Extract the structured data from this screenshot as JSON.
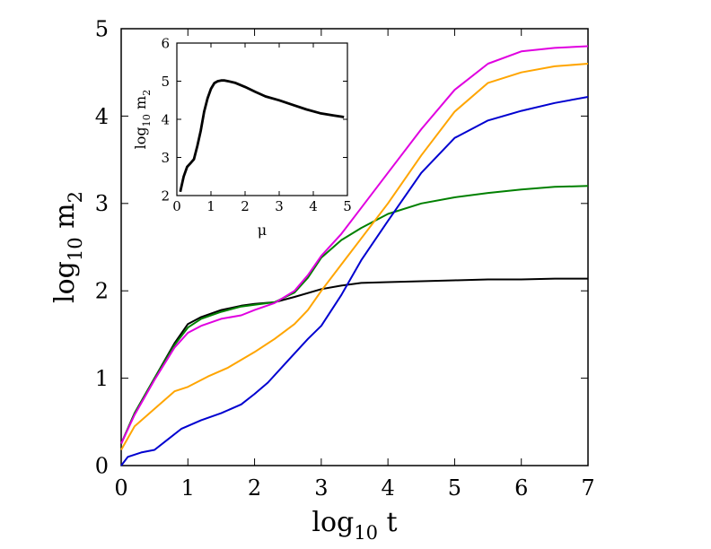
{
  "chart_data": [
    {
      "type": "line",
      "title": "",
      "xlabel": "log",
      "xlabel_sub": "10",
      "xlabel_tail": " t",
      "ylabel": "log",
      "ylabel_sub": "10",
      "ylabel_tail": " m",
      "ylabel_sub2": "2",
      "xlim": [
        0,
        7
      ],
      "ylim": [
        0,
        5
      ],
      "xticks": [
        "0",
        "1",
        "2",
        "3",
        "4",
        "5",
        "6",
        "7"
      ],
      "yticks": [
        "0",
        "1",
        "2",
        "3",
        "4",
        "5"
      ],
      "grid": false,
      "series": [
        {
          "name": "black",
          "color": "#000000",
          "x": [
            0,
            0.2,
            0.5,
            0.8,
            1.0,
            1.2,
            1.5,
            1.8,
            2.0,
            2.3,
            2.6,
            3.0,
            3.3,
            3.6,
            4.0,
            4.5,
            5.0,
            5.5,
            6.0,
            6.5,
            7.0
          ],
          "y": [
            0.25,
            0.6,
            1.0,
            1.4,
            1.62,
            1.7,
            1.78,
            1.83,
            1.85,
            1.87,
            1.93,
            2.02,
            2.06,
            2.09,
            2.1,
            2.11,
            2.12,
            2.13,
            2.13,
            2.14,
            2.14
          ]
        },
        {
          "name": "green",
          "color": "#008000",
          "x": [
            0,
            0.2,
            0.5,
            0.8,
            1.0,
            1.2,
            1.5,
            1.8,
            2.0,
            2.3,
            2.6,
            2.8,
            3.0,
            3.3,
            3.6,
            4.0,
            4.5,
            5.0,
            5.5,
            6.0,
            6.5,
            7.0
          ],
          "y": [
            0.25,
            0.6,
            1.0,
            1.38,
            1.58,
            1.68,
            1.76,
            1.82,
            1.84,
            1.87,
            1.98,
            2.15,
            2.38,
            2.58,
            2.72,
            2.88,
            3.0,
            3.07,
            3.12,
            3.16,
            3.19,
            3.2
          ]
        },
        {
          "name": "magenta",
          "color": "#e000e0",
          "x": [
            0,
            0.2,
            0.5,
            0.8,
            1.0,
            1.2,
            1.5,
            1.8,
            2.0,
            2.3,
            2.6,
            2.8,
            3.0,
            3.3,
            3.6,
            4.0,
            4.5,
            5.0,
            5.5,
            6.0,
            6.5,
            7.0
          ],
          "y": [
            0.25,
            0.58,
            0.98,
            1.35,
            1.52,
            1.6,
            1.68,
            1.72,
            1.78,
            1.86,
            2.0,
            2.18,
            2.4,
            2.65,
            2.95,
            3.35,
            3.85,
            4.3,
            4.6,
            4.74,
            4.78,
            4.8
          ]
        },
        {
          "name": "orange",
          "color": "#ffa500",
          "x": [
            0,
            0.2,
            0.5,
            0.8,
            1.0,
            1.3,
            1.6,
            2.0,
            2.3,
            2.6,
            2.8,
            3.0,
            3.3,
            3.6,
            4.0,
            4.5,
            5.0,
            5.5,
            6.0,
            6.5,
            7.0
          ],
          "y": [
            0.18,
            0.45,
            0.65,
            0.85,
            0.9,
            1.02,
            1.12,
            1.3,
            1.45,
            1.62,
            1.78,
            2.0,
            2.3,
            2.6,
            3.0,
            3.55,
            4.05,
            4.38,
            4.5,
            4.57,
            4.6
          ]
        },
        {
          "name": "blue",
          "color": "#0000d0",
          "x": [
            0,
            0.1,
            0.3,
            0.5,
            0.7,
            0.9,
            1.2,
            1.5,
            1.8,
            2.0,
            2.2,
            2.5,
            2.8,
            3.0,
            3.3,
            3.6,
            4.0,
            4.5,
            5.0,
            5.5,
            6.0,
            6.5,
            7.0
          ],
          "y": [
            0.0,
            0.1,
            0.15,
            0.18,
            0.3,
            0.42,
            0.52,
            0.6,
            0.7,
            0.82,
            0.95,
            1.2,
            1.45,
            1.6,
            1.95,
            2.35,
            2.8,
            3.35,
            3.75,
            3.95,
            4.06,
            4.15,
            4.22
          ]
        }
      ]
    },
    {
      "type": "line",
      "title": "",
      "xlabel": "μ",
      "ylabel": "log",
      "ylabel_sub": "10",
      "ylabel_tail": " m",
      "ylabel_sub2": "2",
      "xlim": [
        0,
        5
      ],
      "ylim": [
        2,
        6
      ],
      "xticks": [
        "0",
        "1",
        "2",
        "3",
        "4",
        "5"
      ],
      "yticks": [
        "2",
        "3",
        "4",
        "5",
        "6"
      ],
      "grid": false,
      "series": [
        {
          "name": "inset",
          "color": "#000000",
          "x": [
            0.1,
            0.2,
            0.3,
            0.4,
            0.5,
            0.6,
            0.7,
            0.8,
            0.9,
            1.0,
            1.1,
            1.2,
            1.3,
            1.4,
            1.5,
            1.7,
            2.0,
            2.3,
            2.6,
            3.0,
            3.4,
            3.8,
            4.2,
            4.6,
            4.9
          ],
          "y": [
            2.1,
            2.5,
            2.75,
            2.85,
            2.95,
            3.3,
            3.7,
            4.2,
            4.55,
            4.8,
            4.95,
            5.0,
            5.02,
            5.02,
            5.0,
            4.96,
            4.85,
            4.72,
            4.6,
            4.5,
            4.38,
            4.26,
            4.16,
            4.1,
            4.06
          ]
        }
      ]
    }
  ]
}
